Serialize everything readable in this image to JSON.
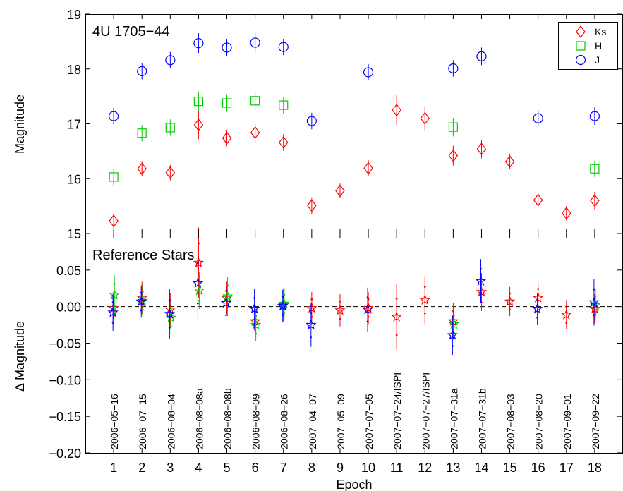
{
  "chart_data": [
    {
      "type": "scatter",
      "title": "4U 1705−44",
      "xlabel": "",
      "ylabel": "Magnitude",
      "ylim": [
        15,
        19
      ],
      "xlim": [
        0,
        19
      ],
      "yticks": [
        "15",
        "16",
        "17",
        "18",
        "19"
      ],
      "grid": false,
      "legend": "top-right",
      "series": [
        {
          "name": "Ks",
          "marker": "diamond",
          "color": "#ff0000",
          "x": [
            1,
            2,
            3,
            4,
            5,
            6,
            7,
            8,
            9,
            10,
            11,
            12,
            13,
            14,
            15,
            16,
            17,
            18
          ],
          "y": [
            15.23,
            16.18,
            16.11,
            16.98,
            16.74,
            16.84,
            16.66,
            15.51,
            15.78,
            16.19,
            17.25,
            17.1,
            16.42,
            16.54,
            16.31,
            15.61,
            15.37,
            15.6
          ],
          "err": [
            0.13,
            0.14,
            0.14,
            0.26,
            0.15,
            0.18,
            0.15,
            0.15,
            0.13,
            0.15,
            0.27,
            0.22,
            0.18,
            0.17,
            0.13,
            0.14,
            0.13,
            0.16
          ]
        },
        {
          "name": "H",
          "marker": "square",
          "color": "#00cc00",
          "x": [
            1,
            2,
            3,
            4,
            5,
            6,
            7,
            13,
            18
          ],
          "y": [
            16.03,
            16.83,
            16.93,
            17.41,
            17.38,
            17.42,
            17.34,
            16.94,
            16.18
          ],
          "err": [
            0.15,
            0.15,
            0.15,
            0.17,
            0.16,
            0.17,
            0.15,
            0.17,
            0.15
          ]
        },
        {
          "name": "J",
          "marker": "circle",
          "color": "#0000ff",
          "x": [
            1,
            2,
            3,
            4,
            5,
            6,
            7,
            8,
            10,
            13,
            14,
            16,
            18
          ],
          "y": [
            17.14,
            17.96,
            18.16,
            18.47,
            18.39,
            18.48,
            18.4,
            17.05,
            17.94,
            18.01,
            18.23,
            17.1,
            17.14
          ],
          "err": [
            0.15,
            0.15,
            0.15,
            0.18,
            0.16,
            0.18,
            0.15,
            0.15,
            0.15,
            0.15,
            0.16,
            0.15,
            0.16
          ]
        }
      ]
    },
    {
      "type": "scatter",
      "title": "Reference Stars",
      "xlabel": "Epoch",
      "ylabel": "Δ Magnitude",
      "ylim": [
        -0.2,
        0.1
      ],
      "xlim": [
        0,
        19
      ],
      "xticks": [
        "1",
        "2",
        "3",
        "4",
        "5",
        "6",
        "7",
        "8",
        "9",
        "10",
        "11",
        "12",
        "13",
        "14",
        "15",
        "16",
        "17",
        "18"
      ],
      "yticks": [
        "−0.20",
        "−0.15",
        "−0.10",
        "−0.05",
        "0.00",
        "0.05"
      ],
      "baseline": 0,
      "epoch_labels": [
        "2006−05−16",
        "2006−07−15",
        "2006−08−04",
        "2006−08−08a",
        "2006−08−08b",
        "2006−08−09",
        "2006−08−26",
        "2007−04−07",
        "2007−05−09",
        "2007−07−05",
        "2007−07−24/ISPI",
        "2007−07−27/ISPI",
        "2007−07−31a",
        "2007−07−31b",
        "2007−08−03",
        "2007−08−20",
        "2007−09−01",
        "2007−09−22"
      ],
      "series": [
        {
          "name": "Ks",
          "marker": "star",
          "color": "#ff0000",
          "x": [
            1,
            2,
            3,
            4,
            5,
            6,
            7,
            8,
            9,
            10,
            11,
            12,
            13,
            14,
            15,
            16,
            17,
            18
          ],
          "y": [
            -0.002,
            0.012,
            -0.004,
            0.06,
            0.012,
            -0.02,
            0.002,
            -0.002,
            -0.005,
            -0.002,
            -0.014,
            0.009,
            -0.02,
            0.02,
            0.007,
            0.012,
            -0.011,
            -0.003
          ],
          "err": [
            0.022,
            0.022,
            0.022,
            0.048,
            0.022,
            0.022,
            0.022,
            0.022,
            0.022,
            0.022,
            0.045,
            0.033,
            0.025,
            0.026,
            0.02,
            0.022,
            0.02,
            0.02
          ]
        },
        {
          "name": "H",
          "marker": "star",
          "color": "#00cc00",
          "x": [
            1,
            2,
            3,
            4,
            5,
            6,
            7,
            13,
            18
          ],
          "y": [
            0.016,
            0.008,
            -0.015,
            0.022,
            0.014,
            -0.025,
            0.004,
            -0.024,
            0.002
          ],
          "err": [
            0.027,
            0.022,
            0.022,
            0.025,
            0.027,
            0.022,
            0.022,
            0.022,
            0.022
          ]
        },
        {
          "name": "J",
          "marker": "star",
          "color": "#0000ff",
          "x": [
            1,
            2,
            3,
            4,
            5,
            6,
            7,
            8,
            10,
            13,
            14,
            16,
            18
          ],
          "y": [
            -0.008,
            0.007,
            -0.01,
            0.032,
            0.005,
            -0.003,
            0.001,
            -0.025,
            -0.004,
            -0.039,
            0.035,
            -0.003,
            0.006
          ],
          "err": [
            0.025,
            0.022,
            0.034,
            0.05,
            0.03,
            0.027,
            0.022,
            0.03,
            0.03,
            0.027,
            0.03,
            0.022,
            0.032
          ]
        }
      ]
    }
  ]
}
